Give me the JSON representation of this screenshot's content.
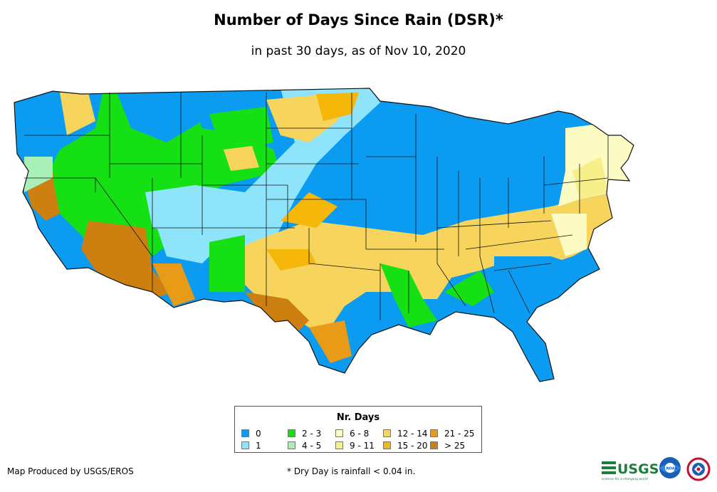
{
  "title": "Number of Days Since Rain (DSR)*",
  "subtitle": "in past 30 days, as of Nov 10, 2020",
  "legend": {
    "title": "Nr. Days",
    "items": [
      {
        "label": "0",
        "color": "#0b9cf2"
      },
      {
        "label": "1",
        "color": "#8ee4fb"
      },
      {
        "label": "2 - 3",
        "color": "#14e014"
      },
      {
        "label": "4 - 5",
        "color": "#a8f0b8"
      },
      {
        "label": "6 - 8",
        "color": "#fdfbc4"
      },
      {
        "label": "9 - 11",
        "color": "#f7f08a"
      },
      {
        "label": "12 - 14",
        "color": "#f7d45c"
      },
      {
        "label": "15 - 20",
        "color": "#f5b70a"
      },
      {
        "label": "21 - 25",
        "color": "#e89b16"
      },
      {
        "label": "> 25",
        "color": "#cd7f0f"
      }
    ]
  },
  "credit": "Map Produced by USGS/EROS",
  "footnote": "* Dry Day is rainfall < 0.04 in.",
  "logos": {
    "usgs_text": "USGS",
    "usgs_tagline": "science for a changing world",
    "noaa_text": "NOAA"
  },
  "colors": {
    "d0": "#0b9cf2",
    "d1": "#8ee4fb",
    "d2_3": "#14e014",
    "d4_5": "#a8f0b8",
    "d6_8": "#fdfbc4",
    "d9_11": "#f7f08a",
    "d12_14": "#f7d45c",
    "d15_20": "#f5b70a",
    "d21_25": "#e89b16",
    "d25p": "#cd7f0f"
  }
}
